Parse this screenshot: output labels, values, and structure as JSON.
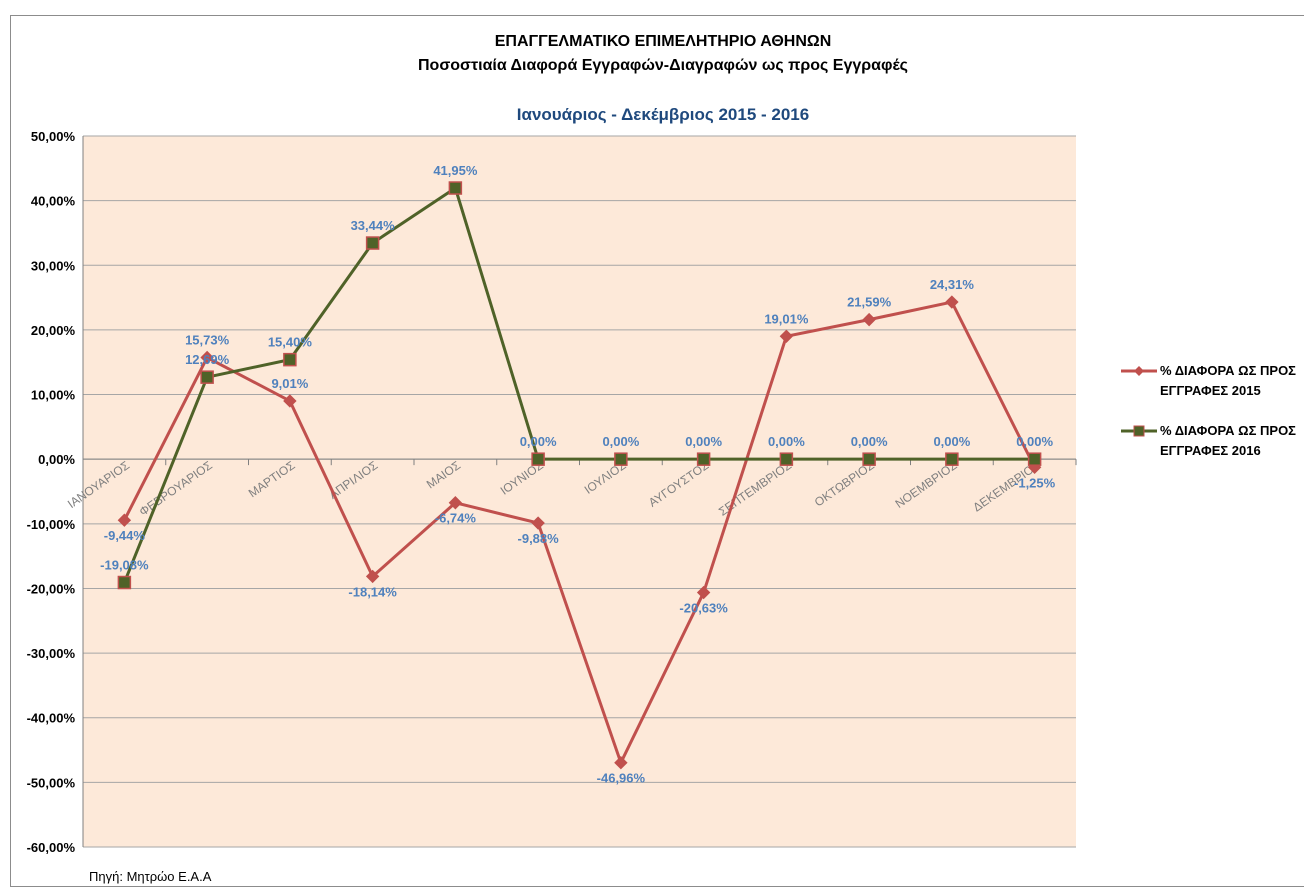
{
  "chart_data": {
    "type": "line",
    "title": "ΕΠΑΓΓΕΛΜΑΤΙΚΟ ΕΠΙΜΕΛΗΤΗΡΙΟ ΑΘΗΝΩΝ",
    "title2": "Ποσοστιαία Διαφορά Εγγραφών-Διαγραφών ως προς Εγγραφές",
    "subtitle": "Ιανουάριος - Δεκέμβριος 2015 - 2016",
    "source": "Πηγή: Μητρώο Ε.Α.Α",
    "categories": [
      "ΙΑΝΟΥΑΡΙΟΣ",
      "ΦΕΒΡΟΥΑΡΙΟΣ",
      "ΜΑΡΤΙΟΣ",
      "ΑΠΡΙΛΙΟΣ",
      "ΜΑΙΟΣ",
      "ΙΟΥΝΙΟΣ",
      "ΙΟΥΛΙΟΣ",
      "ΑΥΓΟΥΣΤΟΣ",
      "ΣΕΠΤΕΜΒΡΙΟΣ",
      "ΟΚΤΩΒΡΙΟΣ",
      "ΝΟΕΜΒΡΙΟΣ",
      "ΔΕΚΕΜΒΡΙΟΣ"
    ],
    "ylim": [
      -60,
      50
    ],
    "yticks": [
      50,
      40,
      30,
      20,
      10,
      0,
      -10,
      -20,
      -30,
      -40,
      -50,
      -60
    ],
    "ytick_labels": [
      "50,00%",
      "40,00%",
      "30,00%",
      "20,00%",
      "10,00%",
      "0,00%",
      "-10,00%",
      "-20,00%",
      "-30,00%",
      "-40,00%",
      "-50,00%",
      "-60,00%"
    ],
    "grid": true,
    "legend_position": "right",
    "series": [
      {
        "name": "% ΔΙΑΦΟΡΑ ΩΣ ΠΡΟΣ ΕΓΓΡΑΦΕΣ 2015",
        "legend_lines": [
          "% ΔΙΑΦΟΡΑ ΩΣ ΠΡΟΣ",
          "ΕΓΓΡΑΦΕΣ 2015"
        ],
        "color": "#c0504d",
        "marker": "diamond",
        "values": [
          -9.44,
          15.73,
          9.01,
          -18.14,
          -6.74,
          -9.88,
          -46.96,
          -20.63,
          19.01,
          21.59,
          24.31,
          -1.25
        ],
        "labels": [
          "-9,44%",
          "15,73%",
          "9,01%",
          "-18,14%",
          "-6,74%",
          "-9,88%",
          "-46,96%",
          "-20,63%",
          "19,01%",
          "21,59%",
          "24,31%",
          "-1,25%"
        ]
      },
      {
        "name": "% ΔΙΑΦΟΡΑ ΩΣ ΠΡΟΣ ΕΓΓΡΑΦΕΣ 2016",
        "legend_lines": [
          "% ΔΙΑΦΟΡΑ ΩΣ ΠΡΟΣ",
          "ΕΓΓΡΑΦΕΣ 2016"
        ],
        "color": "#4f6228",
        "marker_fill": "#4f6228",
        "marker_edge": "#c0504d",
        "marker": "square",
        "values": [
          -19.08,
          12.69,
          15.4,
          33.44,
          41.95,
          0,
          0,
          0,
          0,
          0,
          0,
          0
        ],
        "labels": [
          "-19,08%",
          "12,69%",
          "15,40%",
          "33,44%",
          "41,95%",
          "0,00%",
          "0,00%",
          "0,00%",
          "0,00%",
          "0,00%",
          "0,00%",
          "0,00%"
        ]
      }
    ],
    "colors": {
      "plot_bg": "#fde9d9",
      "grid": "#a6a6a6"
    }
  }
}
